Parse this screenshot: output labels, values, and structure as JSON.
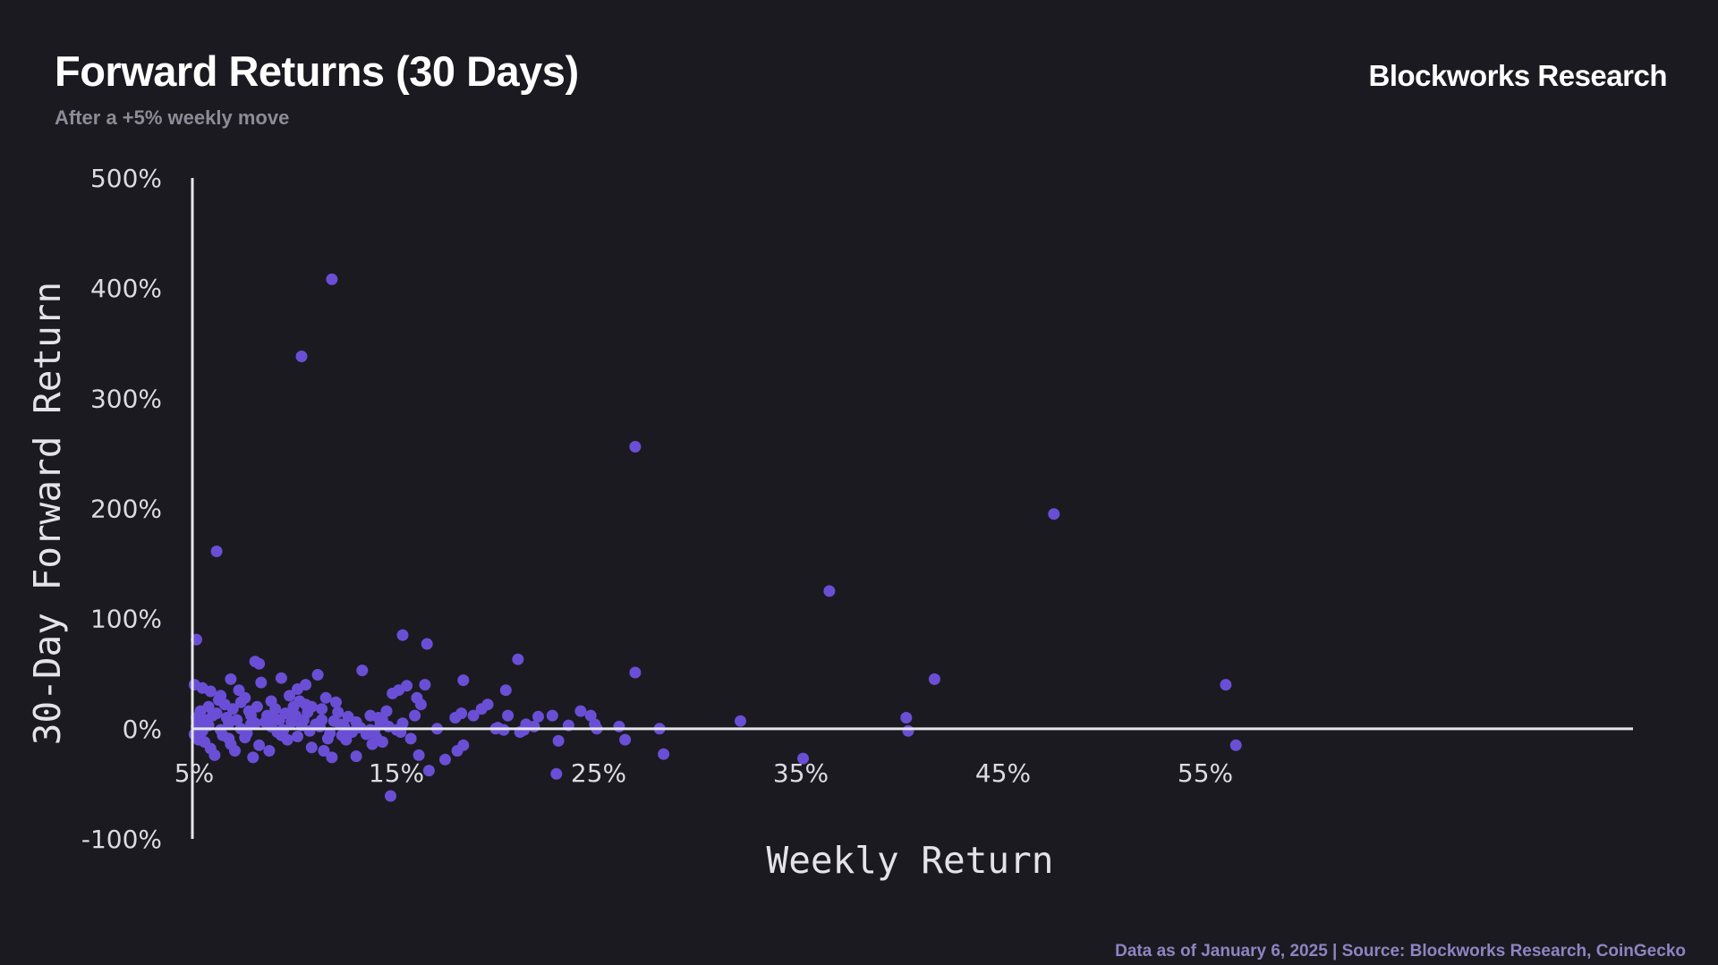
{
  "header": {
    "title": "Forward Returns (30 Days)",
    "subtitle": "After a +5% weekly move",
    "brand": "Blockworks Research"
  },
  "footer": {
    "source": "Data as of January 6, 2025 | Source:  Blockworks Research, CoinGecko"
  },
  "colors": {
    "background": "#1b1a20",
    "point": "#6a4fd6",
    "axis": "#e6e5ea"
  },
  "chart_data": {
    "type": "scatter",
    "title": "Forward Returns (30 Days)",
    "subtitle": "After a +5% weekly move",
    "xlabel": "Weekly Return",
    "ylabel": "30-Day Forward Return",
    "xlim": [
      5,
      60
    ],
    "ylim": [
      -100,
      500
    ],
    "x_ticks": [
      5,
      15,
      25,
      35,
      45,
      55
    ],
    "x_tick_labels": [
      "5%",
      "15%",
      "25%",
      "35%",
      "45%",
      "55%"
    ],
    "y_ticks": [
      500,
      400,
      300,
      200,
      100,
      0,
      -100
    ],
    "y_tick_labels": [
      "500%",
      "400%",
      "300%",
      "200%",
      "100%",
      "0%",
      "-100%"
    ],
    "grid": false,
    "legend": "none",
    "points": [
      [
        11.9,
        408
      ],
      [
        10.4,
        338
      ],
      [
        26.9,
        256
      ],
      [
        47.6,
        195
      ],
      [
        6.2,
        161
      ],
      [
        36.5,
        125
      ],
      [
        5.2,
        81
      ],
      [
        15.4,
        85
      ],
      [
        16.6,
        77
      ],
      [
        26.9,
        51
      ],
      [
        21.1,
        63
      ],
      [
        8.1,
        61
      ],
      [
        8.3,
        59
      ],
      [
        13.4,
        53
      ],
      [
        11.2,
        49
      ],
      [
        18.4,
        44
      ],
      [
        20.5,
        35
      ],
      [
        41.7,
        45
      ],
      [
        56.1,
        40
      ],
      [
        5.1,
        40
      ],
      [
        5.5,
        37
      ],
      [
        5.9,
        34
      ],
      [
        6.4,
        30
      ],
      [
        6.9,
        45
      ],
      [
        7.3,
        35
      ],
      [
        7.6,
        28
      ],
      [
        8.4,
        42
      ],
      [
        8.9,
        25
      ],
      [
        9.4,
        46
      ],
      [
        9.8,
        30
      ],
      [
        10.2,
        36
      ],
      [
        10.6,
        40
      ],
      [
        10.9,
        20
      ],
      [
        11.6,
        28
      ],
      [
        12.2,
        15
      ],
      [
        14.9,
        32
      ],
      [
        15.2,
        35
      ],
      [
        15.6,
        39
      ],
      [
        16.1,
        28
      ],
      [
        16.5,
        40
      ],
      [
        16.3,
        22
      ],
      [
        14.6,
        16
      ],
      [
        14.2,
        10
      ],
      [
        14.4,
        8
      ],
      [
        13.8,
        12
      ],
      [
        13.1,
        6
      ],
      [
        12.7,
        11
      ],
      [
        12.3,
        4
      ],
      [
        11.4,
        8
      ],
      [
        10.7,
        15
      ],
      [
        10.1,
        12
      ],
      [
        9.6,
        14
      ],
      [
        9.1,
        18
      ],
      [
        8.7,
        12
      ],
      [
        8.2,
        20
      ],
      [
        7.8,
        16
      ],
      [
        7.4,
        24
      ],
      [
        7.0,
        18
      ],
      [
        6.6,
        22
      ],
      [
        6.3,
        26
      ],
      [
        5.8,
        20
      ],
      [
        5.4,
        16
      ],
      [
        5.2,
        10
      ],
      [
        5.6,
        8
      ],
      [
        6.0,
        12
      ],
      [
        6.2,
        14
      ],
      [
        6.8,
        5
      ],
      [
        7.2,
        8
      ],
      [
        7.9,
        4
      ],
      [
        8.6,
        6
      ],
      [
        9.3,
        8
      ],
      [
        9.9,
        6
      ],
      [
        10.4,
        3
      ],
      [
        10.8,
        -2
      ],
      [
        11.3,
        2
      ],
      [
        11.8,
        -4
      ],
      [
        12.4,
        -6
      ],
      [
        12.9,
        -3
      ],
      [
        13.6,
        -5
      ],
      [
        14.1,
        -8
      ],
      [
        14.7,
        2
      ],
      [
        15.1,
        -1
      ],
      [
        15.4,
        5
      ],
      [
        17.1,
        0
      ],
      [
        18.0,
        10
      ],
      [
        18.3,
        14
      ],
      [
        18.9,
        12
      ],
      [
        19.3,
        18
      ],
      [
        19.6,
        22
      ],
      [
        20.0,
        0
      ],
      [
        20.4,
        -1
      ],
      [
        20.6,
        12
      ],
      [
        21.5,
        4
      ],
      [
        21.9,
        2
      ],
      [
        22.1,
        11
      ],
      [
        22.8,
        12
      ],
      [
        23.6,
        3
      ],
      [
        24.2,
        16
      ],
      [
        24.7,
        12
      ],
      [
        25.0,
        0
      ],
      [
        24.9,
        4
      ],
      [
        26.1,
        2
      ],
      [
        26.4,
        -10
      ],
      [
        28.1,
        0
      ],
      [
        32.1,
        7
      ],
      [
        40.3,
        10
      ],
      [
        40.4,
        -2
      ],
      [
        5.1,
        -5
      ],
      [
        5.3,
        -10
      ],
      [
        5.6,
        -12
      ],
      [
        5.9,
        -18
      ],
      [
        6.1,
        -24
      ],
      [
        6.5,
        -6
      ],
      [
        6.9,
        -14
      ],
      [
        7.1,
        -20
      ],
      [
        7.6,
        -8
      ],
      [
        8.0,
        -26
      ],
      [
        8.3,
        -15
      ],
      [
        8.8,
        -20
      ],
      [
        9.2,
        -3
      ],
      [
        9.7,
        -10
      ],
      [
        10.2,
        -7
      ],
      [
        10.9,
        -17
      ],
      [
        11.5,
        -20
      ],
      [
        11.9,
        -26
      ],
      [
        12.6,
        -10
      ],
      [
        13.1,
        -25
      ],
      [
        13.9,
        -14
      ],
      [
        14.4,
        -12
      ],
      [
        15.8,
        -9
      ],
      [
        16.2,
        -24
      ],
      [
        16.7,
        -38
      ],
      [
        18.1,
        -20
      ],
      [
        18.4,
        -15
      ],
      [
        21.2,
        -3
      ],
      [
        23.1,
        -11
      ],
      [
        28.3,
        -23
      ],
      [
        35.2,
        -27
      ],
      [
        56.6,
        -15
      ],
      [
        14.8,
        -61
      ],
      [
        23.0,
        -41
      ],
      [
        5.2,
        2
      ],
      [
        5.5,
        -2
      ],
      [
        5.8,
        3
      ],
      [
        6.4,
        -1
      ],
      [
        6.8,
        -9
      ],
      [
        7.4,
        0
      ],
      [
        7.7,
        -4
      ],
      [
        8.1,
        5
      ],
      [
        8.9,
        2
      ],
      [
        9.4,
        -6
      ],
      [
        10.5,
        8
      ],
      [
        11.1,
        4
      ],
      [
        11.7,
        -9
      ],
      [
        12.0,
        7
      ],
      [
        13.3,
        1
      ],
      [
        14.0,
        -2
      ],
      [
        20.1,
        1
      ],
      [
        21.4,
        -1
      ],
      [
        6.7,
        10
      ],
      [
        7.9,
        12
      ],
      [
        9.0,
        9
      ],
      [
        9.5,
        -1
      ],
      [
        10.0,
        20
      ],
      [
        10.3,
        25
      ],
      [
        10.6,
        22
      ],
      [
        11.4,
        18
      ],
      [
        12.1,
        24
      ],
      [
        12.5,
        2
      ],
      [
        13.8,
        -1
      ],
      [
        14.3,
        4
      ],
      [
        15.3,
        -3
      ],
      [
        16.0,
        12
      ],
      [
        17.5,
        -28
      ]
    ]
  }
}
